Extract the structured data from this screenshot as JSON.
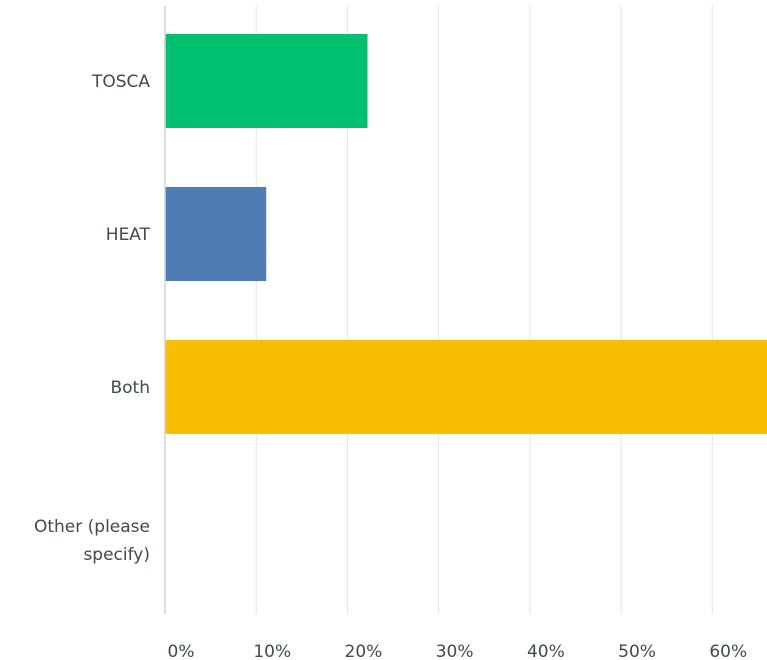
{
  "chart_data": {
    "type": "bar",
    "orientation": "horizontal",
    "categories": [
      "TOSCA",
      "HEAT",
      "Both",
      "Other (please specify)"
    ],
    "category_label_lines": [
      [
        "TOSCA"
      ],
      [
        "HEAT"
      ],
      [
        "Both"
      ],
      [
        "Other (please",
        "specify)"
      ]
    ],
    "values": [
      22.2,
      11.1,
      66.7,
      0
    ],
    "colors": [
      "#00bf6f",
      "#507cb6",
      "#f9be00",
      "#6bc8cd"
    ],
    "xlim": [
      0,
      66
    ],
    "xticks": [
      0,
      10,
      20,
      30,
      40,
      50,
      60
    ],
    "xtick_labels": [
      "0%",
      "10%",
      "20%",
      "30%",
      "40%",
      "50%",
      "60%"
    ],
    "grid": true,
    "title": "",
    "xlabel": "",
    "ylabel": ""
  }
}
